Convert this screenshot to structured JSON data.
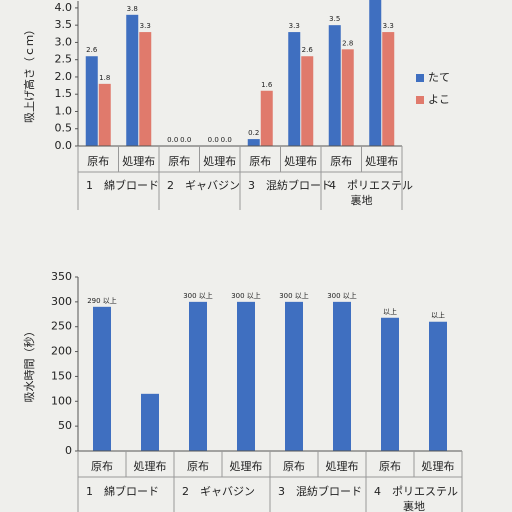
{
  "chart_data": [
    {
      "type": "bar",
      "y_label": "吸上げ高さ（ｃｍ）",
      "categories": [
        "原布",
        "処理布",
        "原布",
        "処理布",
        "原布",
        "処理布",
        "原布",
        "処理布"
      ],
      "groups": [
        [
          "1　綿ブロード"
        ],
        [
          "2　ギャバジン"
        ],
        [
          "3　混紡ブロード"
        ],
        [
          "4　ポリエステル",
          "裏地"
        ]
      ],
      "series": [
        {
          "name": "たて",
          "color": "#3f6fc0",
          "values": [
            2.6,
            3.8,
            0.0,
            0.0,
            0.2,
            3.3,
            3.5,
            4.4
          ],
          "value_labels": [
            "2.6",
            "3.8",
            "0.0",
            "0.0",
            "0.2",
            "3.3",
            "3.5",
            null
          ]
        },
        {
          "name": "よこ",
          "color": "#e07a6c",
          "values": [
            1.8,
            3.3,
            0.0,
            0.0,
            1.6,
            2.6,
            2.8,
            3.3
          ],
          "value_labels": [
            "1.8",
            "3.3",
            "0.0",
            "0.0",
            "1.6",
            "2.6",
            "2.8",
            "3.3"
          ]
        }
      ],
      "ylim": [
        0,
        4.2
      ],
      "yticks": [
        {
          "value": 0,
          "label": "0.0"
        },
        {
          "value": 0.5,
          "label": "0.5"
        },
        {
          "value": 1,
          "label": "1.0"
        },
        {
          "value": 1.5,
          "label": "1.5"
        },
        {
          "value": 2,
          "label": "2.0"
        },
        {
          "value": 2.5,
          "label": "2.5"
        },
        {
          "value": 3,
          "label": "3.0"
        },
        {
          "value": 3.5,
          "label": "3.5"
        },
        {
          "value": 4,
          "label": "4.0"
        }
      ],
      "legend": "right"
    },
    {
      "type": "bar",
      "y_label": "吸水時間（秒）",
      "categories": [
        "原布",
        "処理布",
        "原布",
        "処理布",
        "原布",
        "処理布",
        "原布",
        "処理布"
      ],
      "groups": [
        [
          "1　綿ブロード"
        ],
        [
          "2　ギャバジン"
        ],
        [
          "3　混紡ブロード"
        ],
        [
          "4　ポリエステル",
          "裏地"
        ]
      ],
      "series": [
        {
          "color": "#3f6fc0",
          "values": [
            290,
            115,
            300,
            300,
            300,
            300,
            268,
            260
          ],
          "value_labels": [
            "290 以上",
            null,
            "300 以上",
            "300 以上",
            "300 以上",
            "300 以上",
            "以上",
            "以上"
          ]
        }
      ],
      "ylim": [
        0,
        350
      ],
      "yticks": [
        0,
        50,
        100,
        150,
        200,
        250,
        300,
        350
      ]
    }
  ]
}
